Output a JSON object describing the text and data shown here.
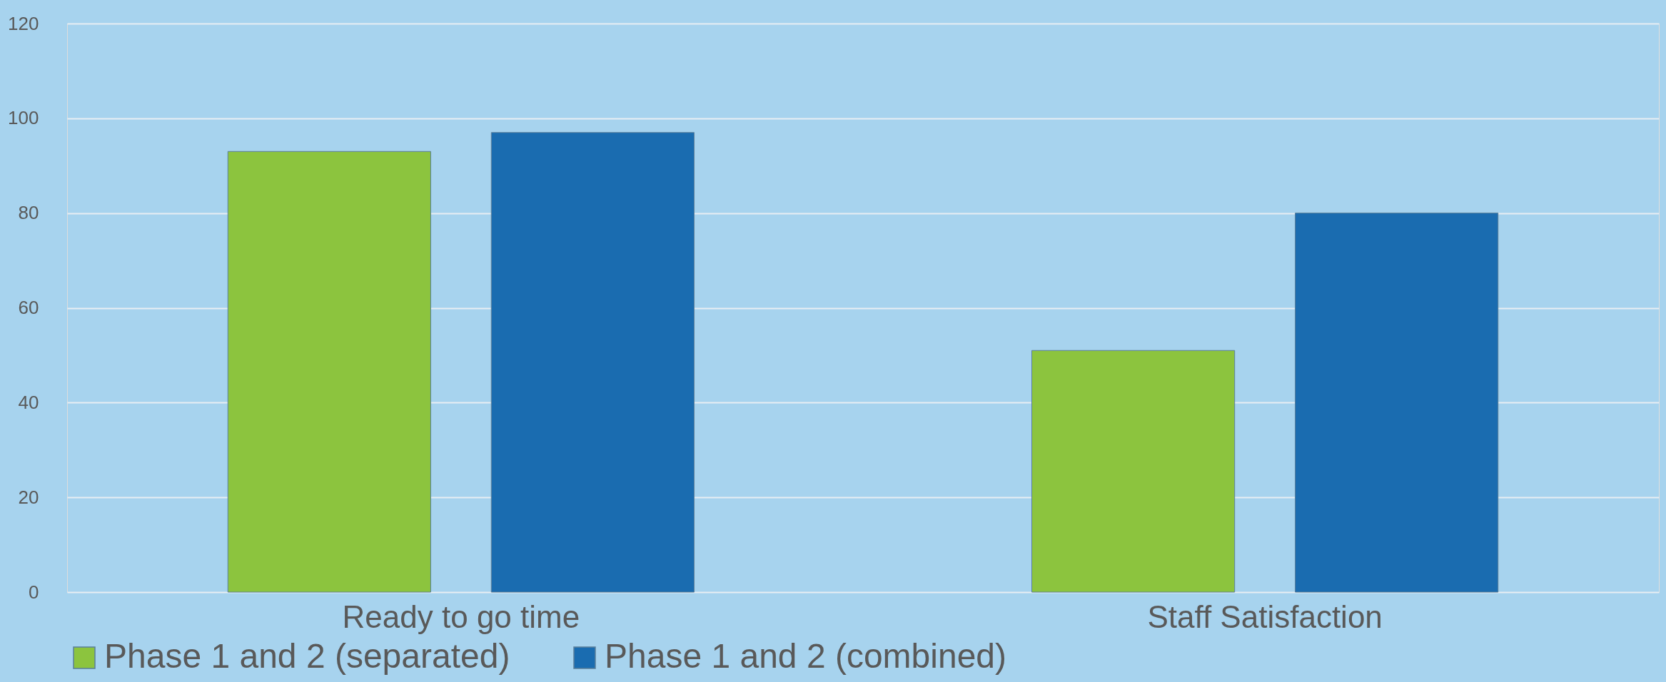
{
  "chart_data": {
    "type": "bar",
    "categories": [
      "Ready to go time",
      "Staff Satisfaction"
    ],
    "series": [
      {
        "name": "Phase 1 and 2 (separated)",
        "color": "#8cc43e",
        "values": [
          93,
          51
        ]
      },
      {
        "name": "Phase 1 and 2 (combined)",
        "color": "#1a6cb0",
        "values": [
          97,
          80
        ]
      }
    ],
    "ylim": [
      0,
      120
    ],
    "yticks": [
      0,
      20,
      40,
      60,
      80,
      100,
      120
    ],
    "grid": "y",
    "legend": "bottom"
  }
}
